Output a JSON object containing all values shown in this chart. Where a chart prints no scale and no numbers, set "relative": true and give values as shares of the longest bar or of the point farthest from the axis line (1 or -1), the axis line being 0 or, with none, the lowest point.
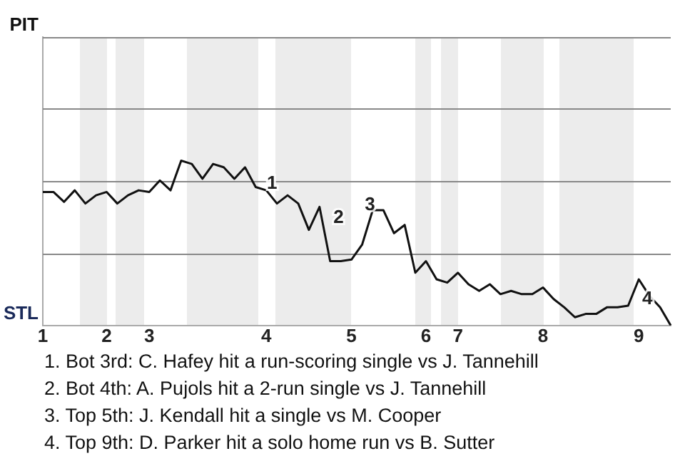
{
  "chart_data": {
    "type": "line",
    "relative": true,
    "categories": [
      "1",
      null,
      null,
      null,
      null,
      null,
      "2",
      null,
      null,
      null,
      "3",
      null,
      null,
      null,
      null,
      null,
      null,
      null,
      null,
      null,
      null,
      "4",
      null,
      null,
      null,
      null,
      null,
      null,
      null,
      "5",
      null,
      null,
      null,
      null,
      null,
      null,
      "6",
      null,
      null,
      "7",
      null,
      null,
      null,
      null,
      null,
      null,
      null,
      "8",
      null,
      null,
      null,
      null,
      null,
      null,
      null,
      null,
      "9",
      null,
      null,
      null
    ],
    "marker": "none",
    "line_style": "solid",
    "series": [
      {
        "color": "#111111",
        "values": [
          0.81,
          0.81,
          0.75,
          0.82,
          0.74,
          0.79,
          0.81,
          0.74,
          0.79,
          0.82,
          0.81,
          0.88,
          0.82,
          1,
          0.98,
          0.89,
          0.98,
          0.96,
          0.89,
          0.96,
          0.84,
          0.82,
          0.74,
          0.79,
          0.74,
          0.58,
          0.72,
          0.39,
          0.39,
          0.4,
          0.49,
          0.7,
          0.7,
          0.56,
          0.61,
          0.32,
          0.39,
          0.28,
          0.26,
          0.32,
          0.25,
          0.21,
          0.25,
          0.19,
          0.21,
          0.19,
          0.19,
          0.23,
          0.16,
          0.11,
          0.05,
          0.07,
          0.07,
          0.11,
          0.11,
          0.12,
          0.28,
          0.18,
          0.11,
          0
        ]
      }
    ],
    "ref_lines": [
      {
        "axis": "y",
        "value": 0.44,
        "color": "#888888"
      },
      {
        "axis": "y",
        "value": 0.88,
        "color": "#888888"
      },
      {
        "axis": "y",
        "value": 1.32,
        "color": "#888888"
      },
      {
        "axis": "y",
        "value": 1.75,
        "color": "#888888"
      }
    ],
    "annotations": [
      "PIT",
      "STL",
      {
        "text": "1",
        "x": "4",
        "y": 0.86
      },
      {
        "text": "2",
        "x": "5",
        "y": 0.4
      },
      {
        "text": "3",
        "x": "5",
        "y": 0.4
      },
      {
        "text": "4",
        "x": "9",
        "y": 0.16
      },
      "1. Bot 3rd: C. Hafey hit a run-scoring single vs J. Tannehill",
      "2. Bot 4th: A. Pujols hit a 2-run single vs J. Tannehill",
      "3. Top 5th: J. Kendall hit a single vs M. Cooper",
      "4. Top 9th: D. Parker hit a solo home run vs B. Sutter"
    ]
  }
}
